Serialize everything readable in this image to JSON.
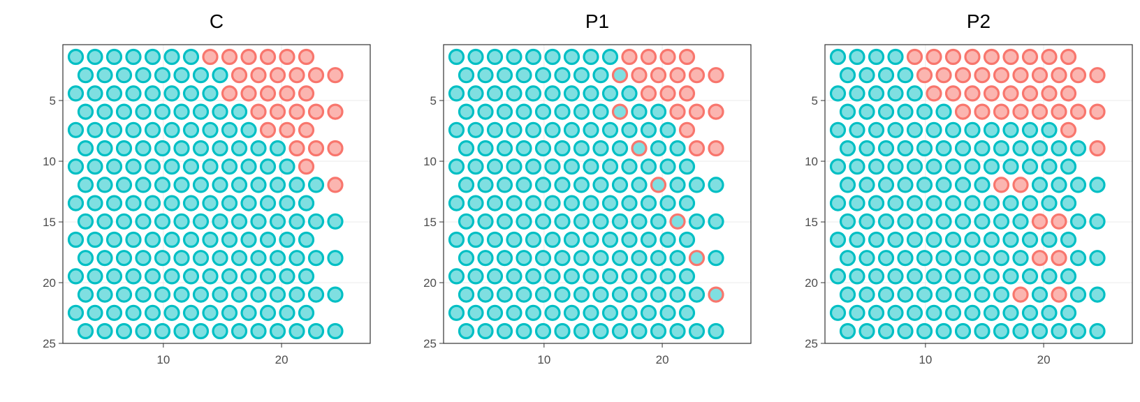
{
  "chart_data": [
    {
      "type": "scatter",
      "title": "C",
      "xlabel": "",
      "ylabel": "",
      "xlim": [
        1.5,
        27.5
      ],
      "ylim": [
        25,
        1
      ],
      "y_reversed": true,
      "xticks": [
        10,
        20
      ],
      "yticks": [
        5,
        10,
        15,
        20,
        25
      ],
      "grid": true,
      "legend": "none",
      "boundary_by_row": [
        8,
        9,
        9,
        10,
        11,
        12,
        13,
        14,
        15,
        16,
        17,
        18,
        19,
        20,
        21,
        22
      ],
      "class_rule": "point is class B when col >= boundary of its row, else class A"
    },
    {
      "type": "scatter",
      "title": "P1",
      "xlabel": "",
      "ylabel": "",
      "xlim": [
        1.5,
        27.5
      ],
      "ylim": [
        25,
        1
      ],
      "y_reversed": true,
      "xticks": [
        10,
        20
      ],
      "yticks": [
        5,
        10,
        15,
        20,
        25
      ],
      "grid": true,
      "legend": "none",
      "boundary_by_row": [
        10,
        10,
        11,
        12,
        13,
        13,
        14,
        15,
        16,
        16,
        17,
        18,
        19,
        19,
        20,
        21
      ],
      "transition_points": [
        [
          9,
          1
        ],
        [
          9,
          3
        ],
        [
          10,
          5
        ],
        [
          11,
          7
        ],
        [
          12,
          9
        ],
        [
          13,
          11
        ],
        [
          14,
          13
        ],
        [
          15,
          15
        ],
        [
          16,
          17
        ],
        [
          17,
          19
        ],
        [
          18,
          21
        ],
        [
          19,
          23
        ]
      ],
      "class_rule": "point is class B when col >= boundary of its row; transition_points drawn blended"
    },
    {
      "type": "scatter",
      "title": "P2",
      "xlabel": "",
      "ylabel": "",
      "xlim": [
        1.5,
        27.5
      ],
      "ylim": [
        25,
        1
      ],
      "y_reversed": true,
      "xticks": [
        10,
        20
      ],
      "yticks": [
        5,
        10,
        15,
        20,
        25
      ],
      "grid": true,
      "legend": "none",
      "boundary_by_row": [
        5,
        5,
        6,
        7,
        13,
        14,
        14,
        15,
        16,
        17,
        18,
        19,
        20,
        20,
        21,
        22
      ],
      "minority_points": [
        [
          9,
          7
        ],
        [
          10,
          7
        ],
        [
          11,
          9
        ],
        [
          12,
          9
        ],
        [
          11,
          11
        ],
        [
          12,
          11
        ],
        [
          10,
          13
        ],
        [
          12,
          13
        ]
      ],
      "class_rule": "point is class B when col >= boundary of its row; minority_points drawn with opposite class fill"
    }
  ],
  "grid_layout": {
    "odd_row_cols": [
      1,
      13
    ],
    "even_row_cols": [
      1,
      14
    ],
    "rows": 16
  },
  "colors": {
    "class_a_stroke": "#00BFC4",
    "class_a_fill": "#7FDFE1",
    "class_b_stroke": "#F8766D",
    "class_b_fill": "#FBB5B0",
    "blend_stroke": "#F8766D",
    "blend_fill": "#FBB5B0",
    "panel_border": "#333333",
    "grid_major": "#EBEBEB",
    "tick_text": "#4D4D4D"
  }
}
